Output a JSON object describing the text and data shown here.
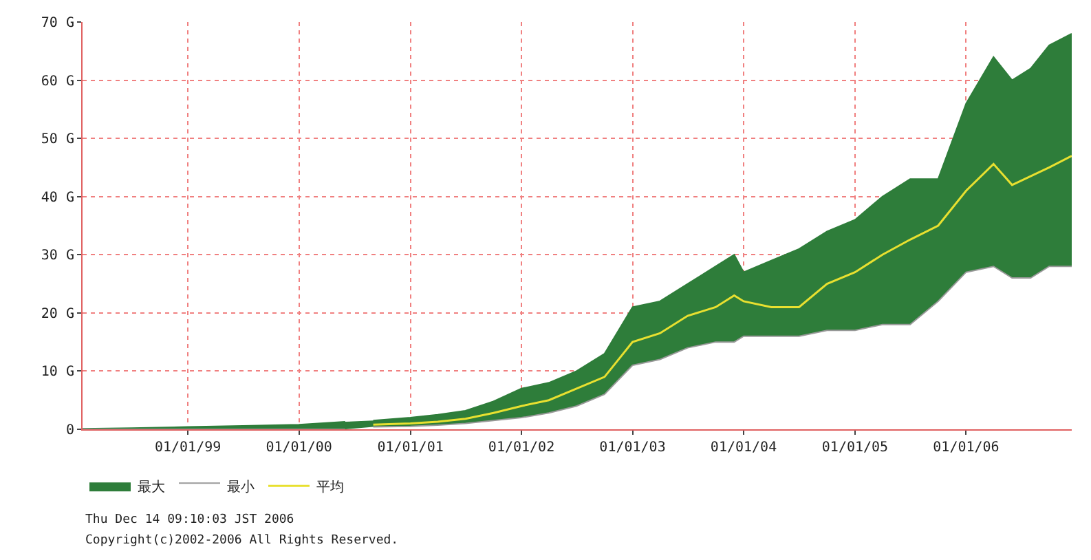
{
  "chart_data": {
    "type": "area",
    "x": [
      "1998-01-20",
      "1998-07-01",
      "1999-01-01",
      "1999-07-01",
      "2000-01-01",
      "2000-06-01",
      "2000-07-20",
      "2000-09-01",
      "2001-01-01",
      "2001-04-01",
      "2001-07-01",
      "2001-10-01",
      "2002-01-01",
      "2002-04-01",
      "2002-07-01",
      "2002-10-01",
      "2003-01-01",
      "2003-04-01",
      "2003-07-01",
      "2003-10-01",
      "2003-12-01",
      "2004-01-01",
      "2004-04-01",
      "2004-07-01",
      "2004-10-01",
      "2005-01-01",
      "2005-04-01",
      "2005-07-01",
      "2005-10-01",
      "2006-01-01",
      "2006-04-01",
      "2006-06-01",
      "2006-08-01",
      "2006-10-01",
      "2006-12-14"
    ],
    "series": [
      {
        "name": "最大",
        "color": "#2e7d3a",
        "values": [
          0.1,
          0.2,
          0.4,
          0.6,
          0.8,
          1.3,
          null,
          1.5,
          2,
          2.5,
          3.2,
          4.8,
          7,
          8,
          10,
          13,
          21,
          22,
          25,
          28,
          30,
          27,
          29,
          31,
          34,
          36,
          40,
          43,
          43,
          56,
          64,
          60,
          62,
          66,
          68
        ]
      },
      {
        "name": "最小",
        "color": "#ffffff",
        "values": [
          0,
          0,
          0,
          0,
          0,
          0,
          null,
          0.4,
          0.5,
          0.7,
          1,
          1.5,
          2,
          2.8,
          4,
          6,
          11,
          12,
          14,
          15,
          15,
          16,
          16,
          16,
          17,
          17,
          18,
          18,
          22,
          27,
          28,
          26,
          26,
          28,
          28
        ]
      },
      {
        "name": "平均",
        "type": "line",
        "color": "#e8e030",
        "values": [
          null,
          null,
          null,
          null,
          null,
          null,
          null,
          0.8,
          1,
          1.3,
          1.8,
          2.8,
          4,
          5,
          7,
          9,
          15,
          16.5,
          19.5,
          21,
          23,
          22,
          21,
          21,
          25,
          27,
          30,
          32.6,
          35,
          41,
          45.6,
          42,
          43.5,
          45,
          47
        ]
      }
    ],
    "xlim": [
      "1998-01-20",
      "2006-12-14"
    ],
    "xticks": [
      {
        "value": "1999-01-01",
        "label": "01/01/99"
      },
      {
        "value": "2000-01-01",
        "label": "01/01/00"
      },
      {
        "value": "2001-01-01",
        "label": "01/01/01"
      },
      {
        "value": "2002-01-01",
        "label": "01/01/02"
      },
      {
        "value": "2003-01-01",
        "label": "01/01/03"
      },
      {
        "value": "2004-01-01",
        "label": "01/01/04"
      },
      {
        "value": "2005-01-01",
        "label": "01/01/05"
      },
      {
        "value": "2006-01-01",
        "label": "01/01/06"
      }
    ],
    "ylim": [
      0,
      70
    ],
    "yticks": [
      0,
      {
        "value": 10,
        "label": "10 G"
      },
      {
        "value": 20,
        "label": "20 G"
      },
      {
        "value": 30,
        "label": "30 G"
      },
      {
        "value": 40,
        "label": "40 G"
      },
      {
        "value": 50,
        "label": "50 G"
      },
      {
        "value": 60,
        "label": "60 G"
      },
      {
        "value": 70,
        "label": "70 G"
      }
    ],
    "grid": true,
    "legend": "bottom left",
    "annotations": [
      "Thu Dec 14 09:10:03 JST 2006",
      "Copyright(c)2002-2006 All Rights Reserved."
    ]
  }
}
